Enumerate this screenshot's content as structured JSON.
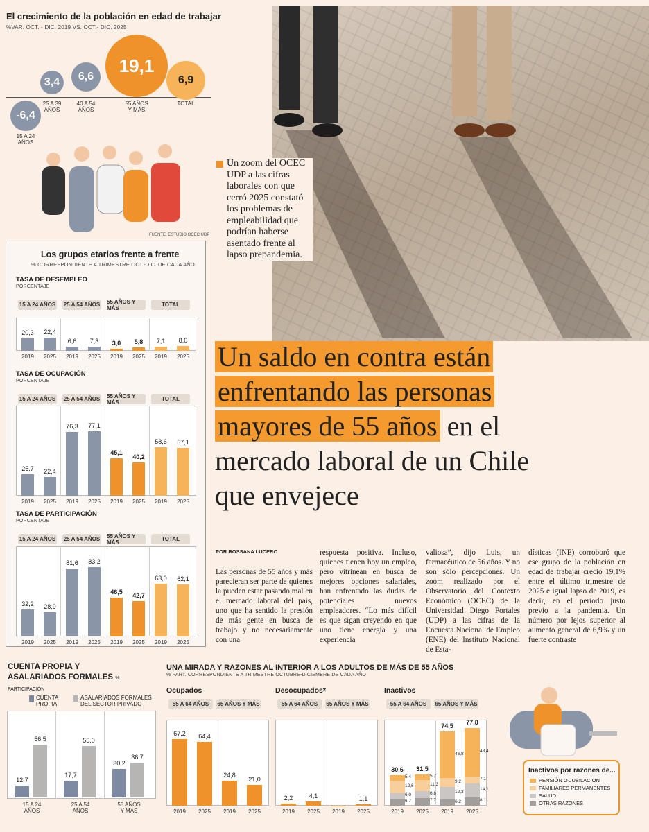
{
  "top": {
    "title": "El crecimiento de la población en edad de trabajar",
    "subtitle": "%VAR. OCT. - DIC. 2019 VS. OCT.- DIC. 2025",
    "bubbles": [
      {
        "value": "-6,4",
        "label": "15 A 24\nAÑOS",
        "color": "#8a95a8"
      },
      {
        "value": "3,4",
        "label": "25 A 39\nAÑOS",
        "color": "#8a95a8"
      },
      {
        "value": "6,6",
        "label": "40 A 54\nAÑOS",
        "color": "#8a95a8"
      },
      {
        "value": "19,1",
        "label": "55 AÑOS\nY MÁS",
        "color": "#f0922a"
      },
      {
        "value": "6,9",
        "label": "TOTAL",
        "color": "#f6b35a"
      }
    ],
    "source": "FUENTE: ESTUDIO OCEC UDP"
  },
  "caption": "Un zoom del OCEC UDP a las cifras laborales con que cerró 2025 constató los problemas de empleabilidad que podrían haberse asentado frente al lapso prepandemia.",
  "headline": {
    "hl1": "Un saldo en contra están",
    "hl2": "enfrentando las personas",
    "hl3": "mayores de 55 años",
    "rest1": " en el",
    "rest2": "mercado laboral de un Chile",
    "rest3": "que envejece"
  },
  "groups": {
    "title": "Los grupos etarios frente a frente",
    "subtitle": "% CORRESPONDIENTE A TRIMESTRE OCT.-DIC. DE CADA AÑO",
    "cats": [
      "15 A 24 AÑOS",
      "25 A 54 AÑOS",
      "55 AÑOS Y MÁS",
      "TOTAL"
    ],
    "charts": [
      {
        "title": "TASA DE DESEMPLEO",
        "unit": "PORCENTAJE",
        "values": [
          [
            20.3,
            22.4
          ],
          [
            6.6,
            7.3
          ],
          [
            3.0,
            5.8
          ],
          [
            7.1,
            8.0
          ]
        ],
        "labels": [
          [
            "20,3",
            "22,4"
          ],
          [
            "6,6",
            "7,3"
          ],
          [
            "3,0",
            "5,8"
          ],
          [
            "7,1",
            "8,0"
          ]
        ]
      },
      {
        "title": "TASA DE OCUPACIÓN",
        "unit": "PORCENTAJE",
        "values": [
          [
            25.7,
            22.4
          ],
          [
            76.3,
            77.1
          ],
          [
            45.1,
            40.2
          ],
          [
            58.6,
            57.1
          ]
        ],
        "labels": [
          [
            "25,7",
            "22,4"
          ],
          [
            "76,3",
            "77,1"
          ],
          [
            "45,1",
            "40,2"
          ],
          [
            "58,6",
            "57,1"
          ]
        ]
      },
      {
        "title": "TASA DE PARTICIPACIÓN",
        "unit": "PORCENTAJE",
        "values": [
          [
            32.2,
            28.9
          ],
          [
            81.6,
            83.2
          ],
          [
            46.5,
            42.7
          ],
          [
            63.0,
            62.1
          ]
        ],
        "labels": [
          [
            "32,2",
            "28,9"
          ],
          [
            "81,6",
            "83,2"
          ],
          [
            "46,5",
            "42,7"
          ],
          [
            "63,0",
            "62,1"
          ]
        ]
      }
    ],
    "years": [
      "2019",
      "2025"
    ]
  },
  "byline": "POR ROSSANA LUCERO",
  "cols": [
    "Las personas de 55 años y más parecieran ser parte de quienes la pueden estar pasando mal en el mercado laboral del país, uno que ha sentido la presión de más gente en busca de trabajo y no necesariamente con una",
    "respuesta positiva. Incluso, quienes tienen hoy un empleo, pero vitrinean en busca de mejores opciones salariales, han enfrentado las dudas de potenciales nuevos empleadores. “Lo más difícil es que sigan creyendo en que uno tiene energía y una experiencia",
    "valiosa”, dijo Luis, un farmacéutico de 56 años. Y no son sólo percepciones. Un zoom realizado por el Observatorio del Contexto Económico (OCEC) de la Universidad Diego Portales (UDP) a las cifras de la Encuesta Nacional de Empleo (ENE) del Instituto Nacional de Esta-",
    "dísticas (INE) corroboró que ese grupo de la población en edad de trabajar creció 19,1% entre el último trimestre de 2025 e igual lapso de 2019, es decir, en el período justo previo a la pandemia. Un número por lejos superior al aumento general de 6,9% y un fuerte contraste"
  ],
  "cuenta": {
    "title": "CUENTA PROPIA Y ASALARIADOS FORMALES",
    "unit": "% PARTICIPACIÓN",
    "leg1": "CUENTA PROPIA",
    "leg2": "ASALARIADOS FORMALES DEL SECTOR PRIVADO",
    "cats": [
      "15 A 24\nAÑOS",
      "25 A 54\nAÑOS",
      "55 AÑOS\nY MÁS"
    ],
    "cp": [
      12.7,
      17.7,
      30.2
    ],
    "af": [
      56.5,
      55.0,
      36.7
    ],
    "cpl": [
      "12,7",
      "17,7",
      "30,2"
    ],
    "afl": [
      "56,5",
      "55,0",
      "36,7"
    ]
  },
  "mirada": {
    "title": "UNA MIRADA Y RAZONES AL INTERIOR A LOS ADULTOS DE MÁS DE 55 AÑOS",
    "subtitle": "% PART. CORRESPONDIENTE A TRIMESTRE OCTUBRE-DICIEMBRE DE CADA AÑO",
    "g1": "55 A 64 AÑOS",
    "g2": "65 AÑOS Y MÁS",
    "ocupados": {
      "title": "Ocupados",
      "values": [
        67.2,
        64.4,
        24.8,
        21.0
      ],
      "labels": [
        "67,2",
        "64,4",
        "24,8",
        "21,0"
      ]
    },
    "desocupados": {
      "title": "Desocupados*",
      "values": [
        2.2,
        4.1,
        0.3,
        1.1
      ],
      "labels": [
        "2,2",
        "4,1",
        "",
        "1,1"
      ]
    },
    "inactivos": {
      "title": "Inactivos",
      "totals": [
        "30,6",
        "31,5",
        "74,5",
        "77,8"
      ],
      "totalv": [
        30.6,
        31.5,
        74.5,
        77.8
      ],
      "stacks": [
        [
          5.4,
          12.6,
          6.0,
          6.7
        ],
        [
          5.7,
          11.3,
          6.8,
          7.7
        ],
        [
          46.8,
          9.2,
          12.3,
          6.2
        ],
        [
          48.4,
          7.1,
          14.1,
          8.1
        ]
      ],
      "stackl": [
        [
          "5,4",
          "12,6",
          "6,0",
          "6,7"
        ],
        [
          "5,7",
          "11,3",
          "6,8",
          "7,7"
        ],
        [
          "46,8",
          "9,2",
          "12,3",
          "6,2"
        ],
        [
          "48,4",
          "7,1",
          "14,1",
          "8,1"
        ]
      ]
    },
    "years": [
      "2019",
      "2025",
      "2019",
      "2025"
    ]
  },
  "razones": {
    "title": "Inactivos por razones de...",
    "items": [
      {
        "label": "PENSIÓN O JUBILACIÓN",
        "color": "#f6b35a"
      },
      {
        "label": "FAMILIARES PERMANENTES",
        "color": "#f8cf9a"
      },
      {
        "label": "SALUD",
        "color": "#c9c6c4"
      },
      {
        "label": "OTRAS RAZONES",
        "color": "#a19e9c"
      }
    ]
  }
}
